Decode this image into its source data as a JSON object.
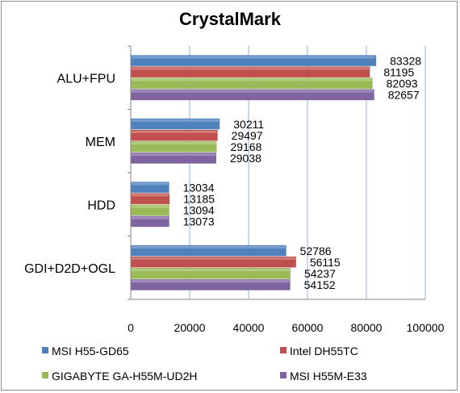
{
  "chart_data": {
    "type": "bar",
    "orientation": "horizontal",
    "title": "CrystalMark",
    "xlabel": "",
    "ylabel": "",
    "categories": [
      "ALU+FPU",
      "MEM",
      "HDD",
      "GDI+D2D+OGL"
    ],
    "series": [
      {
        "name": "MSI H55-GD65",
        "color": "#4f81bd",
        "values": [
          83328,
          30211,
          13034,
          52786
        ]
      },
      {
        "name": "Intel DH55TC",
        "color": "#c0504d",
        "values": [
          81195,
          29497,
          13185,
          56115
        ]
      },
      {
        "name": "GIGABYTE GA-H55M-UD2H",
        "color": "#9bbb59",
        "values": [
          82093,
          29168,
          13094,
          54237
        ]
      },
      {
        "name": "MSI H55M-E33",
        "color": "#8064a2",
        "values": [
          82657,
          29038,
          13073,
          54152
        ]
      }
    ],
    "xlim": [
      0,
      100000
    ],
    "xticks": [
      "0",
      "20000",
      "40000",
      "60000",
      "80000",
      "100000"
    ],
    "grid": "vertical",
    "legend": "bottom"
  }
}
